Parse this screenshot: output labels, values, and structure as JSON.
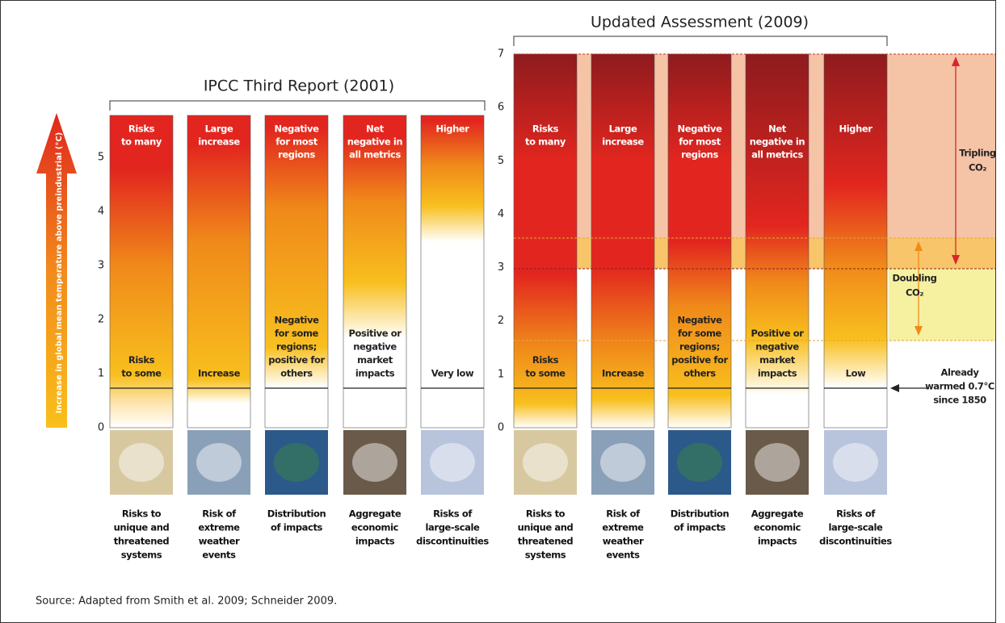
{
  "axis_label": "Increase in global mean temperature above preindustrial (°C)",
  "left_panel": {
    "title": "IPCC Third Report (2001)",
    "ticks": [
      0,
      1,
      2,
      3,
      4,
      5
    ],
    "columns": [
      {
        "top": [
          "Risks",
          "to many"
        ],
        "bottom": [
          "Risks",
          "to some"
        ],
        "label": [
          "Risks to",
          "unique and",
          "threatened",
          "systems"
        ]
      },
      {
        "top": [
          "Large",
          "increase"
        ],
        "bottom": [
          "Increase"
        ],
        "label": [
          "Risk of",
          "extreme",
          "weather",
          "events"
        ]
      },
      {
        "top": [
          "Negative",
          "for most",
          "regions"
        ],
        "bottom": [
          "Negative",
          "for some",
          "regions;",
          "positive for",
          "others"
        ],
        "label": [
          "Distribution",
          "of impacts"
        ]
      },
      {
        "top": [
          "Net",
          "negative in",
          "all metrics"
        ],
        "bottom": [
          "Positive or",
          "negative",
          "market",
          "impacts"
        ],
        "label": [
          "Aggregate",
          "economic",
          "impacts"
        ]
      },
      {
        "top": [
          "Higher"
        ],
        "bottom": [
          "Very low"
        ],
        "label": [
          "Risks of",
          "large-scale",
          "discontinuities"
        ]
      }
    ]
  },
  "right_panel": {
    "title": "Updated Assessment (2009)",
    "ticks": [
      0,
      1,
      2,
      3,
      4,
      5,
      6,
      7
    ],
    "columns": [
      {
        "top": [
          "Risks",
          "to many"
        ],
        "bottom": [
          "Risks",
          "to some"
        ],
        "label": [
          "Risks to",
          "unique and",
          "threatened",
          "systems"
        ]
      },
      {
        "top": [
          "Large",
          "increase"
        ],
        "bottom": [
          "Increase"
        ],
        "label": [
          "Risk of",
          "extreme",
          "weather",
          "events"
        ]
      },
      {
        "top": [
          "Negative",
          "for most",
          "regions"
        ],
        "bottom": [
          "Negative",
          "for some",
          "regions;",
          "positive for",
          "others"
        ],
        "label": [
          "Distribution",
          "of impacts"
        ]
      },
      {
        "top": [
          "Net",
          "negative in",
          "all metrics"
        ],
        "bottom": [
          "Positive or",
          "negative",
          "market",
          "impacts"
        ],
        "label": [
          "Aggregate",
          "economic",
          "impacts"
        ]
      },
      {
        "top": [
          "Higher"
        ],
        "bottom": [
          "Low"
        ],
        "label": [
          "Risks of",
          "large-scale",
          "discontinuities"
        ]
      }
    ]
  },
  "annotations": {
    "tripling": [
      "Tripling",
      "CO₂"
    ],
    "doubling": [
      "Doubling",
      "CO₂"
    ],
    "warmed": [
      "Already",
      "warmed 0.7°C",
      "since 1850"
    ]
  },
  "source": "Source: Adapted from Smith et al. 2009; Schneider 2009."
}
